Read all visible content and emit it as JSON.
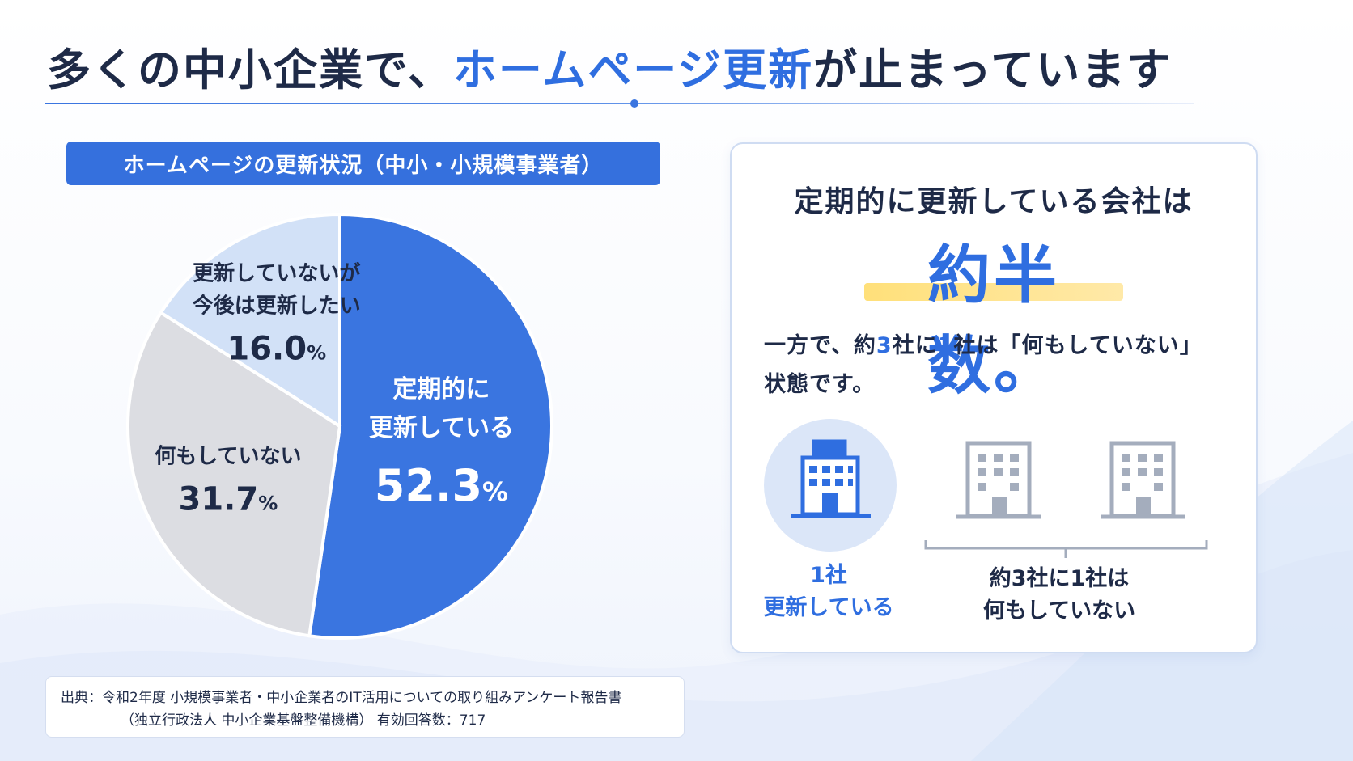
{
  "title": {
    "part1": "多くの中小企業で、",
    "highlight": "ホームページ更新",
    "part2": "が止まっています"
  },
  "chart_data": {
    "type": "pie",
    "title": "ホームページの更新状況（中小・小規模事業者）",
    "unit": "%",
    "slices": [
      {
        "label_lines": [
          "定期的に",
          "更新している"
        ],
        "value": 52.3,
        "value_text": "52.3",
        "color": "#3a75e0"
      },
      {
        "label_lines": [
          "何もしていない"
        ],
        "value": 31.7,
        "value_text": "31.7",
        "color": "#dcdde2"
      },
      {
        "label_lines": [
          "更新していないが",
          "今後は更新したい"
        ],
        "value": 16.0,
        "value_text": "16.0",
        "color": "#d2e1f7"
      }
    ]
  },
  "card": {
    "lead": "定期的に更新している会社は",
    "headline": "約半数。",
    "desc_line1_a": "一方で、約",
    "desc_line1_n1": "3",
    "desc_line1_b": "社に",
    "desc_line1_n2": "1",
    "desc_line1_c": "社は「何もしていない」",
    "desc_line2": "状態です。",
    "caption_left_1": "1社",
    "caption_left_2": "更新している",
    "caption_right_1": "約3社に1社は",
    "caption_right_2": "何もしていない",
    "accent_color": "#2f6ee0",
    "building_icon": "office-building-icon"
  },
  "source": {
    "line1": "出典：令和2年度 小規模事業者・中小企業者のIT活用についての取り組みアンケート報告書",
    "line2": "（独立行政法人 中小企業基盤整備機構） 有効回答数：717"
  }
}
